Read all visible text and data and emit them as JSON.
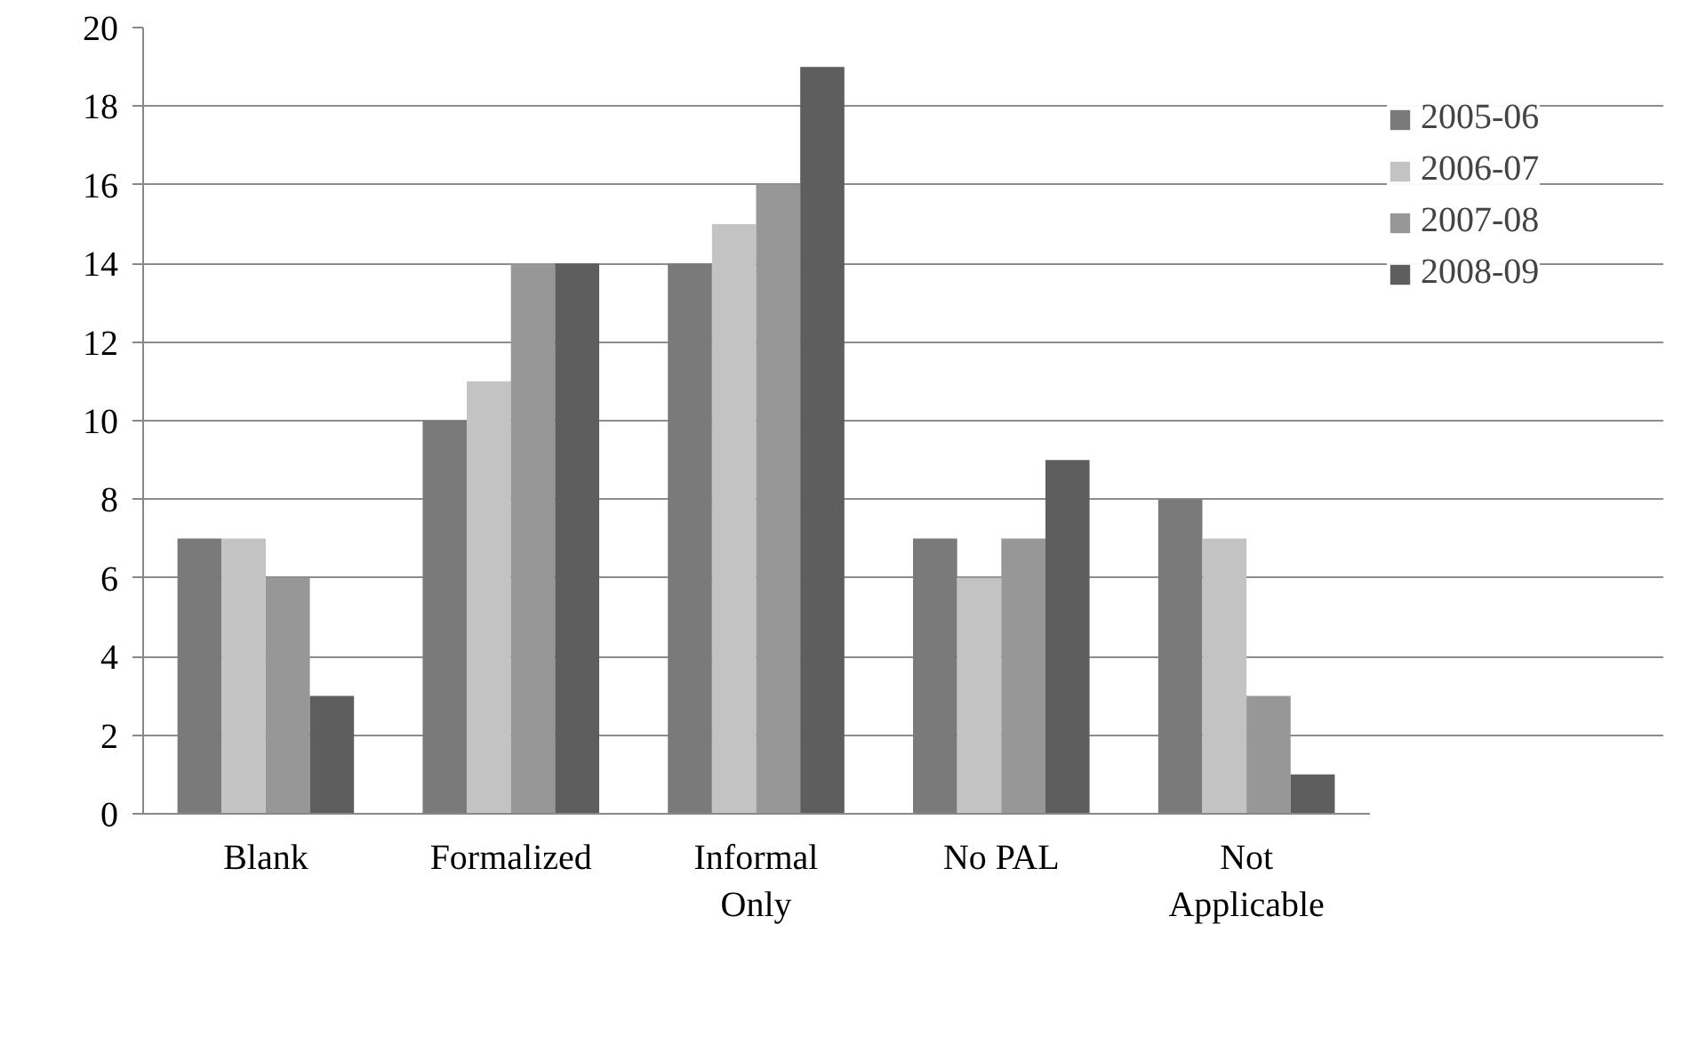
{
  "chart_data": {
    "type": "bar",
    "categories": [
      "Blank",
      "Formalized",
      "Informal\nOnly",
      "No PAL",
      "Not\nApplicable"
    ],
    "series": [
      {
        "name": "2005-06",
        "color": "#7a7a7a",
        "values": [
          7,
          10,
          14,
          7,
          8
        ]
      },
      {
        "name": "2006-07",
        "color": "#c3c3c3",
        "values": [
          7,
          11,
          15,
          6,
          7
        ]
      },
      {
        "name": "2007-08",
        "color": "#979797",
        "values": [
          6,
          14,
          16,
          7,
          3
        ]
      },
      {
        "name": "2008-09",
        "color": "#5e5e5e",
        "values": [
          3,
          14,
          19,
          9,
          1
        ]
      }
    ],
    "ylim": [
      0,
      20
    ],
    "yticks": [
      0,
      2,
      4,
      6,
      8,
      10,
      12,
      14,
      16,
      18,
      20
    ],
    "grid": "y",
    "legend": "top right"
  }
}
